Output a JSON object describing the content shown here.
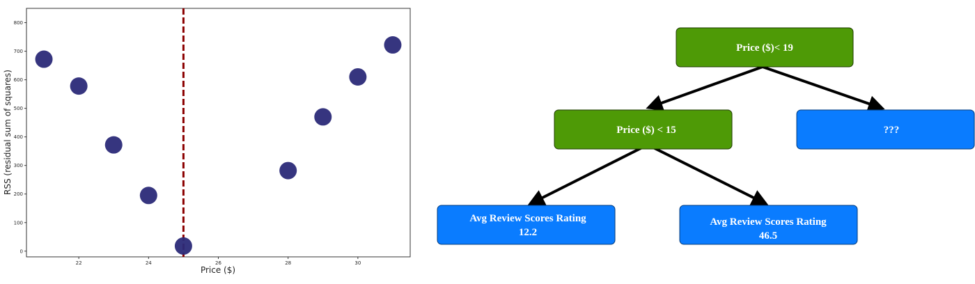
{
  "chart_data": {
    "type": "scatter",
    "xlabel": "Price ($)",
    "ylabel": "RSS (residual sum of squares)",
    "xlim": [
      20.5,
      31.5
    ],
    "ylim": [
      -20,
      850
    ],
    "xticks": [
      22,
      24,
      26,
      28,
      30
    ],
    "yticks": [
      0,
      100,
      200,
      300,
      400,
      500,
      600,
      700,
      800
    ],
    "grid": false,
    "points": [
      {
        "x": 21,
        "y": 672
      },
      {
        "x": 22,
        "y": 578
      },
      {
        "x": 23,
        "y": 372
      },
      {
        "x": 24,
        "y": 195
      },
      {
        "x": 25,
        "y": 18
      },
      {
        "x": 28,
        "y": 282
      },
      {
        "x": 29,
        "y": 470
      },
      {
        "x": 30,
        "y": 610
      },
      {
        "x": 31,
        "y": 722
      }
    ],
    "vline": {
      "x": 25,
      "color": "#8b0000",
      "style": "dashed"
    },
    "marker_color": "#2b2a78"
  },
  "tree": {
    "colors": {
      "split": "#4e9a06",
      "leaf": "#0a7cff"
    },
    "nodes": {
      "root": {
        "label": "Price ($)< 19"
      },
      "left": {
        "label": "Price ($) < 15"
      },
      "right": {
        "label": "???"
      },
      "leaf1": {
        "line1": "Avg Review Scores Rating",
        "line2": "12.2"
      },
      "leaf2": {
        "line1": "Avg Review Scores Rating",
        "line2": "46.5"
      }
    }
  }
}
